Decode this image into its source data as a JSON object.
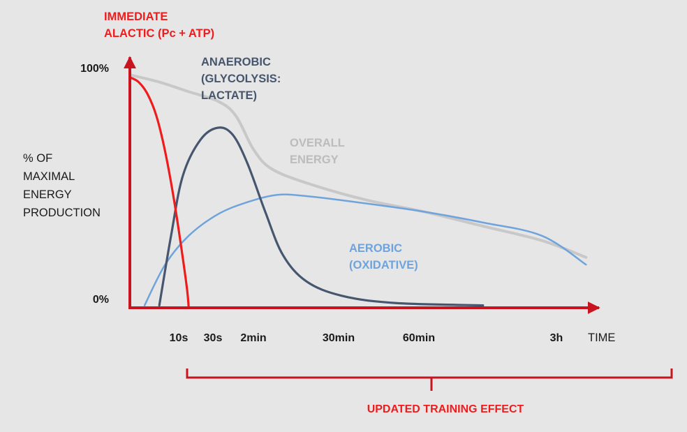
{
  "chart_data": {
    "type": "line",
    "ylabel": [
      "% OF",
      "MAXIMAL",
      "ENERGY",
      "PRODUCTION"
    ],
    "xlabel": "TIME",
    "y_ticks": [
      "100%",
      "0%"
    ],
    "x_ticks": [
      "10s",
      "30s",
      "2min",
      "30min",
      "60min",
      "3h"
    ],
    "ylim": [
      0,
      100
    ],
    "grid": false,
    "colors": {
      "alactic": "#ee1c1c",
      "anaerobic": "#46566e",
      "aerobic": "#6fa3dc",
      "overall": "#c8c8c8",
      "axes": "#c8141e",
      "background": "#e6e6e6"
    },
    "series": [
      {
        "name": "IMMEDIATE ALACTIC (Pc + ATP)",
        "label_lines": [
          "IMMEDIATE",
          "ALACTIC (Pc + ATP)"
        ],
        "key": "alactic",
        "points": [
          [
            0,
            96
          ],
          [
            0.15,
            94
          ],
          [
            0.3,
            89
          ],
          [
            0.45,
            80
          ],
          [
            0.6,
            65
          ],
          [
            0.75,
            45
          ],
          [
            0.88,
            24
          ],
          [
            0.97,
            8
          ],
          [
            1.0,
            0
          ]
        ]
      },
      {
        "name": "ANAEROBIC (GLYCOLYSIS: LACTATE)",
        "label_lines": [
          "ANAEROBIC",
          "(GLYCOLYSIS:",
          "LACTATE)"
        ],
        "key": "anaerobic",
        "points": [
          [
            0.5,
            1
          ],
          [
            0.7,
            30
          ],
          [
            0.9,
            55
          ],
          [
            1.2,
            70
          ],
          [
            1.5,
            75
          ],
          [
            1.75,
            72
          ],
          [
            2.0,
            60
          ],
          [
            2.3,
            40
          ],
          [
            2.6,
            22
          ],
          [
            3.0,
            11
          ],
          [
            3.6,
            5
          ],
          [
            4.5,
            2
          ],
          [
            6.0,
            1
          ]
        ]
      },
      {
        "name": "AEROBIC (OXIDATIVE)",
        "label_lines": [
          "AEROBIC",
          "(OXIDATIVE)"
        ],
        "key": "aerobic",
        "points": [
          [
            0.25,
            1
          ],
          [
            0.6,
            18
          ],
          [
            1.0,
            30
          ],
          [
            1.5,
            39
          ],
          [
            2.0,
            44
          ],
          [
            2.5,
            47
          ],
          [
            3.0,
            46.5
          ],
          [
            4.0,
            43.5
          ],
          [
            5.0,
            40
          ],
          [
            6.0,
            35.5
          ],
          [
            7.0,
            30
          ],
          [
            7.75,
            18
          ]
        ]
      },
      {
        "name": "OVERALL ENERGY",
        "label_lines": [
          "OVERALL",
          "ENERGY"
        ],
        "key": "overall",
        "points": [
          [
            0,
            97
          ],
          [
            0.5,
            94
          ],
          [
            1.0,
            90
          ],
          [
            1.5,
            86
          ],
          [
            1.8,
            80
          ],
          [
            2.1,
            66
          ],
          [
            2.4,
            58
          ],
          [
            3.0,
            52
          ],
          [
            4.0,
            45
          ],
          [
            5.0,
            40
          ],
          [
            6.0,
            34
          ],
          [
            7.0,
            28
          ],
          [
            7.75,
            21
          ]
        ]
      }
    ]
  },
  "footer": {
    "bracket_label": "UPDATED TRAINING EFFECT"
  }
}
